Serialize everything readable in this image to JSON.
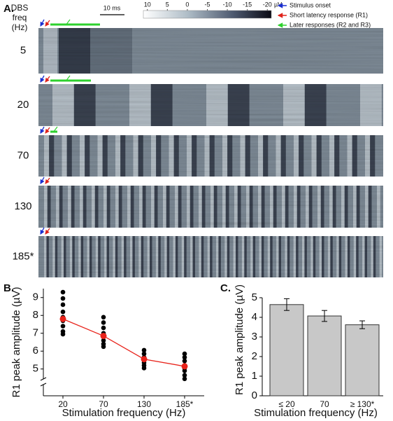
{
  "chart_data": [
    {
      "type": "raster",
      "panel_label": "A.",
      "row_axis_label": [
        "DBS",
        "freq",
        "(Hz)"
      ],
      "rows": [
        "5",
        "20",
        "70",
        "130",
        "185*"
      ],
      "scale_bar": "10 ms",
      "colorbar": {
        "lim": [
          11,
          -21
        ],
        "ticks": [
          10,
          5,
          0,
          -5,
          -10,
          -15,
          -20
        ],
        "unit": "µV"
      },
      "legend": [
        {
          "name": "Stimulus onset",
          "color": "#1a2fd0"
        },
        {
          "name": "Short latency response (R1)",
          "color": "#e0231b"
        },
        {
          "name": "Later responses (R2 and R3)",
          "color": "#2ed12e"
        }
      ]
    },
    {
      "type": "dotline",
      "panel_label": "B.",
      "categories": [
        "20",
        "70",
        "130",
        "185*"
      ],
      "points": [
        [
          9.3,
          8.95,
          8.6,
          8.2,
          7.9,
          7.7,
          7.4,
          7.1,
          6.95
        ],
        [
          7.9,
          7.6,
          7.3,
          7.0,
          6.85,
          6.6,
          6.4,
          6.25
        ],
        [
          6.05,
          5.85,
          5.65,
          5.5,
          5.35,
          5.2,
          5.05
        ],
        [
          5.85,
          5.65,
          5.45,
          5.2,
          5.05,
          4.9,
          4.65,
          4.45
        ]
      ],
      "series": [
        {
          "name": "mean",
          "color": "#e8231b",
          "values": [
            7.8,
            6.85,
            5.55,
            5.15
          ]
        }
      ],
      "point_color": "#000000",
      "ylim": [
        3.5,
        9.5
      ],
      "yticks": [
        5,
        6,
        7,
        8,
        9
      ],
      "xlabel": "Stimulation frequency (Hz)",
      "ylabel": "R1 peak amplitude (µV)"
    },
    {
      "type": "bar",
      "panel_label": "C.",
      "categories": [
        "≤ 20",
        "70",
        "≥ 130*"
      ],
      "values": [
        4.65,
        4.07,
        3.62
      ],
      "errors": [
        0.3,
        0.28,
        0.2
      ],
      "color": "#c8c8c8",
      "ylim": [
        0,
        5
      ],
      "yticks": [
        0,
        1,
        2,
        3,
        4,
        5
      ],
      "xlabel": "Stimulation frequency (Hz)",
      "ylabel": "R1 peak amplitude (µV)"
    }
  ]
}
